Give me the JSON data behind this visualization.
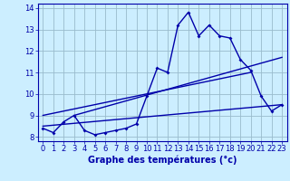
{
  "xlabel": "Graphe des températures (°c)",
  "bg_color": "#cceeff",
  "grid_color": "#99bbcc",
  "line_color": "#0000aa",
  "xlim": [
    -0.5,
    23.5
  ],
  "ylim": [
    7.8,
    14.2
  ],
  "yticks": [
    8,
    9,
    10,
    11,
    12,
    13,
    14
  ],
  "xticks": [
    0,
    1,
    2,
    3,
    4,
    5,
    6,
    7,
    8,
    9,
    10,
    11,
    12,
    13,
    14,
    15,
    16,
    17,
    18,
    19,
    20,
    21,
    22,
    23
  ],
  "hours": [
    0,
    1,
    2,
    3,
    4,
    5,
    6,
    7,
    8,
    9,
    10,
    11,
    12,
    13,
    14,
    15,
    16,
    17,
    18,
    19,
    20,
    21,
    22,
    23
  ],
  "temps": [
    8.4,
    8.2,
    8.7,
    9.0,
    8.3,
    8.1,
    8.2,
    8.3,
    8.4,
    8.6,
    9.9,
    11.2,
    11.0,
    13.2,
    13.8,
    12.7,
    13.2,
    12.7,
    12.6,
    11.6,
    11.1,
    9.9,
    9.2,
    9.5
  ],
  "line1_x": [
    0,
    23
  ],
  "line1_y": [
    8.5,
    9.5
  ],
  "line2_x": [
    0,
    20
  ],
  "line2_y": [
    9.0,
    11.0
  ],
  "line3_x": [
    3,
    23
  ],
  "line3_y": [
    9.0,
    11.7
  ],
  "tick_fontsize": 6,
  "xlabel_fontsize": 7,
  "marker_size": 2.0,
  "line_width": 1.0
}
